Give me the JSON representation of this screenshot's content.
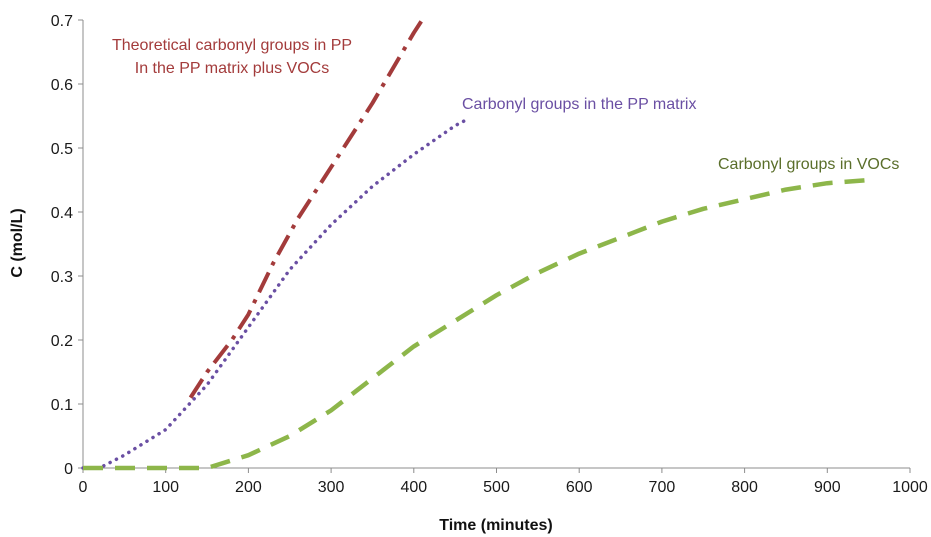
{
  "chart_data": {
    "type": "line",
    "xlabel": "Time (minutes)",
    "ylabel": "C (mol/L)",
    "xlim": [
      0,
      1000
    ],
    "ylim": [
      0,
      0.7
    ],
    "xticks": [
      "0",
      "100",
      "200",
      "300",
      "400",
      "500",
      "600",
      "700",
      "800",
      "900",
      "1000"
    ],
    "yticks": [
      "0",
      "0.1",
      "0.2",
      "0.3",
      "0.4",
      "0.5",
      "0.6",
      "0.7"
    ],
    "grid": false,
    "legend": "none",
    "series": [
      {
        "name": "Theoretical carbonyl groups in PP In the PP matrix plus VOCs",
        "color": "#a33b3b",
        "style": "dash-dot",
        "x": [
          130,
          150,
          180,
          200,
          230,
          260,
          300,
          350,
          400,
          410
        ],
        "y": [
          0.11,
          0.15,
          0.2,
          0.24,
          0.32,
          0.39,
          0.47,
          0.57,
          0.68,
          0.7
        ]
      },
      {
        "name": "Carbonyl groups in the PP matrix",
        "color": "#6a4fa3",
        "style": "dotted",
        "x": [
          0,
          20,
          50,
          100,
          150,
          200,
          250,
          300,
          350,
          400,
          450,
          465
        ],
        "y": [
          0,
          0.0,
          0.02,
          0.06,
          0.13,
          0.22,
          0.31,
          0.38,
          0.44,
          0.49,
          0.535,
          0.545
        ]
      },
      {
        "name": "Carbonyl groups in VOCs",
        "color": "#8db64a",
        "style": "dashed",
        "x": [
          0,
          50,
          100,
          150,
          200,
          250,
          300,
          350,
          400,
          450,
          500,
          550,
          600,
          650,
          700,
          750,
          800,
          850,
          900,
          950
        ],
        "y": [
          0,
          0,
          0,
          0,
          0.02,
          0.05,
          0.09,
          0.14,
          0.19,
          0.23,
          0.27,
          0.305,
          0.335,
          0.36,
          0.385,
          0.405,
          0.42,
          0.435,
          0.445,
          0.45
        ]
      }
    ],
    "annotations": [
      {
        "lines": [
          "Theoretical carbonyl groups in PP",
          "In the PP matrix plus VOCs"
        ],
        "color": "#a33b3b"
      },
      {
        "lines": [
          "Carbonyl groups in the PP matrix"
        ],
        "color": "#6a4fa3"
      },
      {
        "lines": [
          "Carbonyl groups in VOCs"
        ],
        "color": "#5a6e2a"
      }
    ]
  }
}
